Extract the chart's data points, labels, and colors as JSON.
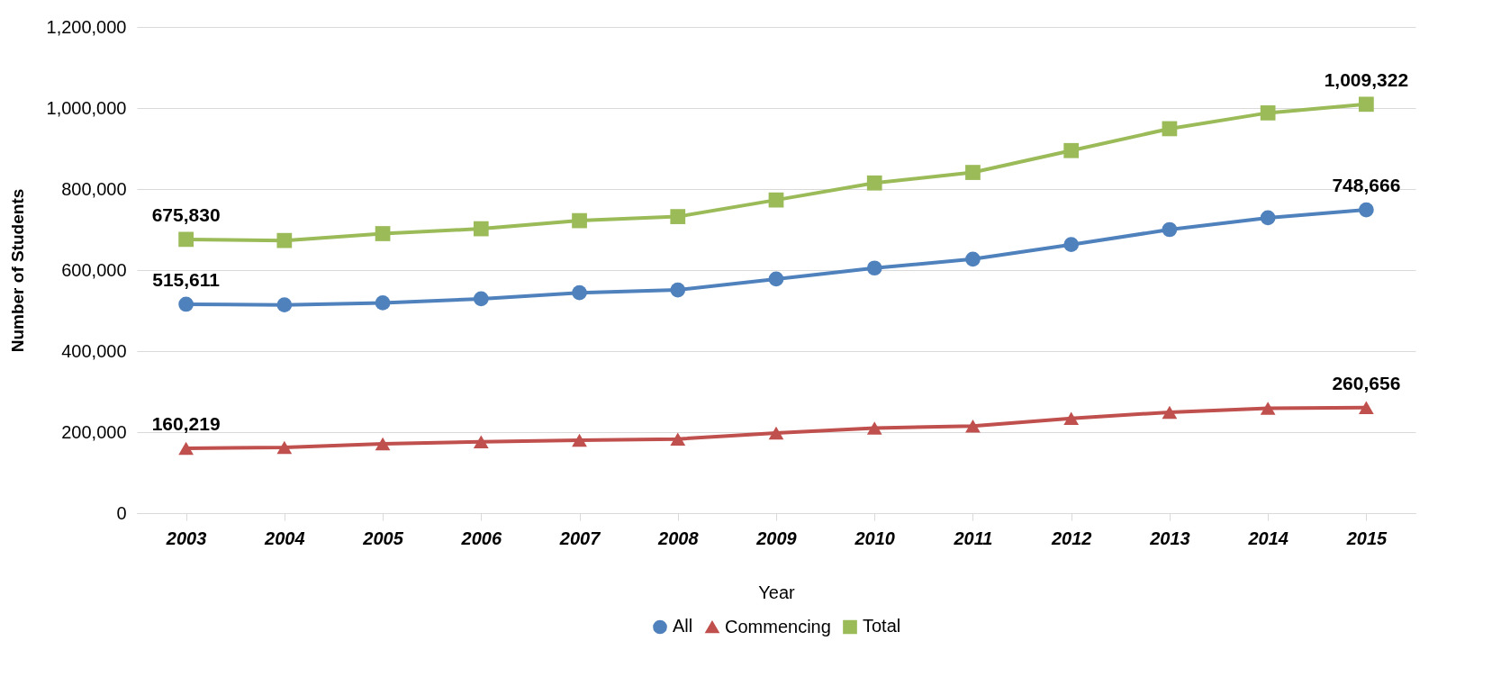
{
  "chart_data": {
    "type": "line",
    "xlabel": "Year",
    "ylabel": "Number of Students",
    "categories": [
      "2003",
      "2004",
      "2005",
      "2006",
      "2007",
      "2008",
      "2009",
      "2010",
      "2011",
      "2012",
      "2013",
      "2014",
      "2015"
    ],
    "series": [
      {
        "name": "All",
        "color": "#4f81bd",
        "marker": "circle",
        "values": [
          515611,
          514000,
          519000,
          529000,
          544000,
          551000,
          578000,
          605000,
          627000,
          663000,
          700000,
          729000,
          748666
        ],
        "value_labels": [
          "515,611",
          null,
          null,
          null,
          null,
          null,
          null,
          null,
          null,
          null,
          null,
          null,
          "748,666"
        ]
      },
      {
        "name": "Commencing",
        "color": "#c0504d",
        "marker": "triangle",
        "values": [
          160219,
          162000,
          171000,
          176000,
          180000,
          183000,
          198000,
          210000,
          215000,
          234000,
          249000,
          259000,
          260656
        ],
        "value_labels": [
          "160,219",
          null,
          null,
          null,
          null,
          null,
          null,
          null,
          null,
          null,
          null,
          null,
          "260,656"
        ]
      },
      {
        "name": "Total",
        "color": "#9bbb59",
        "marker": "square",
        "values": [
          675830,
          673000,
          690000,
          702000,
          722000,
          732000,
          773000,
          815000,
          841000,
          895000,
          949000,
          988000,
          1009322
        ],
        "value_labels": [
          "675,830",
          null,
          null,
          null,
          null,
          null,
          null,
          null,
          null,
          null,
          null,
          null,
          "1,009,322"
        ]
      }
    ],
    "ylim": [
      0,
      1200000
    ],
    "yticks": [
      0,
      {
        "value": 200000,
        "label": "200,000"
      },
      {
        "value": 400000,
        "label": "400,000"
      },
      {
        "value": 600000,
        "label": "600,000"
      },
      {
        "value": 800000,
        "label": "800,000"
      },
      {
        "value": 1000000,
        "label": "1,000,000"
      },
      {
        "value": 1200000,
        "label": "1,200,000"
      }
    ],
    "grid": "y",
    "legend": "bottom",
    "line_style": "solid"
  }
}
